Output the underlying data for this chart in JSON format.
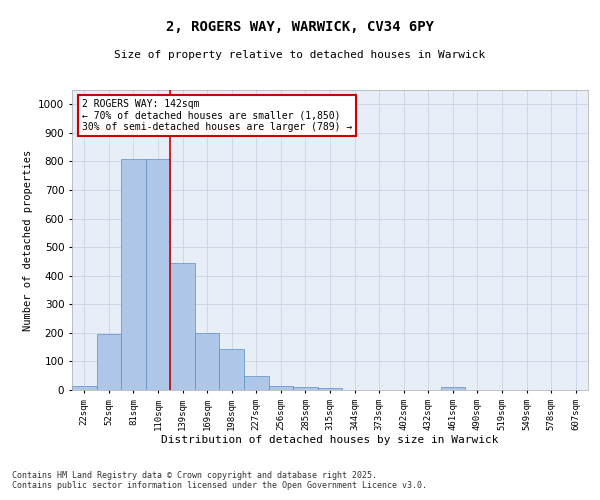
{
  "title_line1": "2, ROGERS WAY, WARWICK, CV34 6PY",
  "title_line2": "Size of property relative to detached houses in Warwick",
  "xlabel": "Distribution of detached houses by size in Warwick",
  "ylabel": "Number of detached properties",
  "categories": [
    "22sqm",
    "52sqm",
    "81sqm",
    "110sqm",
    "139sqm",
    "169sqm",
    "198sqm",
    "227sqm",
    "256sqm",
    "285sqm",
    "315sqm",
    "344sqm",
    "373sqm",
    "402sqm",
    "432sqm",
    "461sqm",
    "490sqm",
    "519sqm",
    "549sqm",
    "578sqm",
    "607sqm"
  ],
  "values": [
    15,
    195,
    810,
    810,
    445,
    200,
    145,
    50,
    15,
    10,
    6,
    0,
    0,
    0,
    0,
    10,
    0,
    0,
    0,
    0,
    0
  ],
  "bar_color": "#aec6e8",
  "bar_edge_color": "#5a8fc2",
  "vline_x": 3.5,
  "vline_color": "#cc0000",
  "annotation_text": "2 ROGERS WAY: 142sqm\n← 70% of detached houses are smaller (1,850)\n30% of semi-detached houses are larger (789) →",
  "annotation_box_color": "#ffffff",
  "annotation_box_edge": "#cc0000",
  "ylim": [
    0,
    1050
  ],
  "yticks": [
    0,
    100,
    200,
    300,
    400,
    500,
    600,
    700,
    800,
    900,
    1000
  ],
  "grid_color": "#d0d8e8",
  "background_color": "#e8eef8",
  "fig_background": "#ffffff",
  "footer_line1": "Contains HM Land Registry data © Crown copyright and database right 2025.",
  "footer_line2": "Contains public sector information licensed under the Open Government Licence v3.0."
}
